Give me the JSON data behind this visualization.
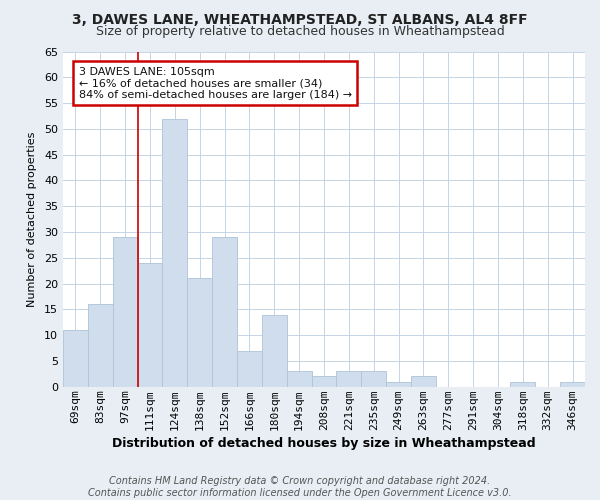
{
  "title": "3, DAWES LANE, WHEATHAMPSTEAD, ST ALBANS, AL4 8FF",
  "subtitle": "Size of property relative to detached houses in Wheathampstead",
  "xlabel": "Distribution of detached houses by size in Wheathampstead",
  "ylabel": "Number of detached properties",
  "bar_color": "#cfdded",
  "bar_edge_color": "#aec4d8",
  "background_color": "#e8eef4",
  "plot_bg_color": "#ffffff",
  "categories": [
    "69sqm",
    "83sqm",
    "97sqm",
    "111sqm",
    "124sqm",
    "138sqm",
    "152sqm",
    "166sqm",
    "180sqm",
    "194sqm",
    "208sqm",
    "221sqm",
    "235sqm",
    "249sqm",
    "263sqm",
    "277sqm",
    "291sqm",
    "304sqm",
    "318sqm",
    "332sqm",
    "346sqm"
  ],
  "values": [
    11,
    16,
    29,
    24,
    52,
    21,
    29,
    7,
    14,
    3,
    2,
    3,
    3,
    1,
    2,
    0,
    0,
    0,
    1,
    0,
    1
  ],
  "ylim": [
    0,
    65
  ],
  "yticks": [
    0,
    5,
    10,
    15,
    20,
    25,
    30,
    35,
    40,
    45,
    50,
    55,
    60,
    65
  ],
  "vline_x_index": 3,
  "vline_color": "#cc0000",
  "annotation_title": "3 DAWES LANE: 105sqm",
  "annotation_line1": "← 16% of detached houses are smaller (34)",
  "annotation_line2": "84% of semi-detached houses are larger (184) →",
  "annotation_box_color": "#ffffff",
  "annotation_border_color": "#cc0000",
  "footer_line1": "Contains HM Land Registry data © Crown copyright and database right 2024.",
  "footer_line2": "Contains public sector information licensed under the Open Government Licence v3.0.",
  "title_fontsize": 10,
  "subtitle_fontsize": 9,
  "xlabel_fontsize": 9,
  "ylabel_fontsize": 8,
  "tick_fontsize": 8,
  "annotation_fontsize": 8,
  "footer_fontsize": 7
}
